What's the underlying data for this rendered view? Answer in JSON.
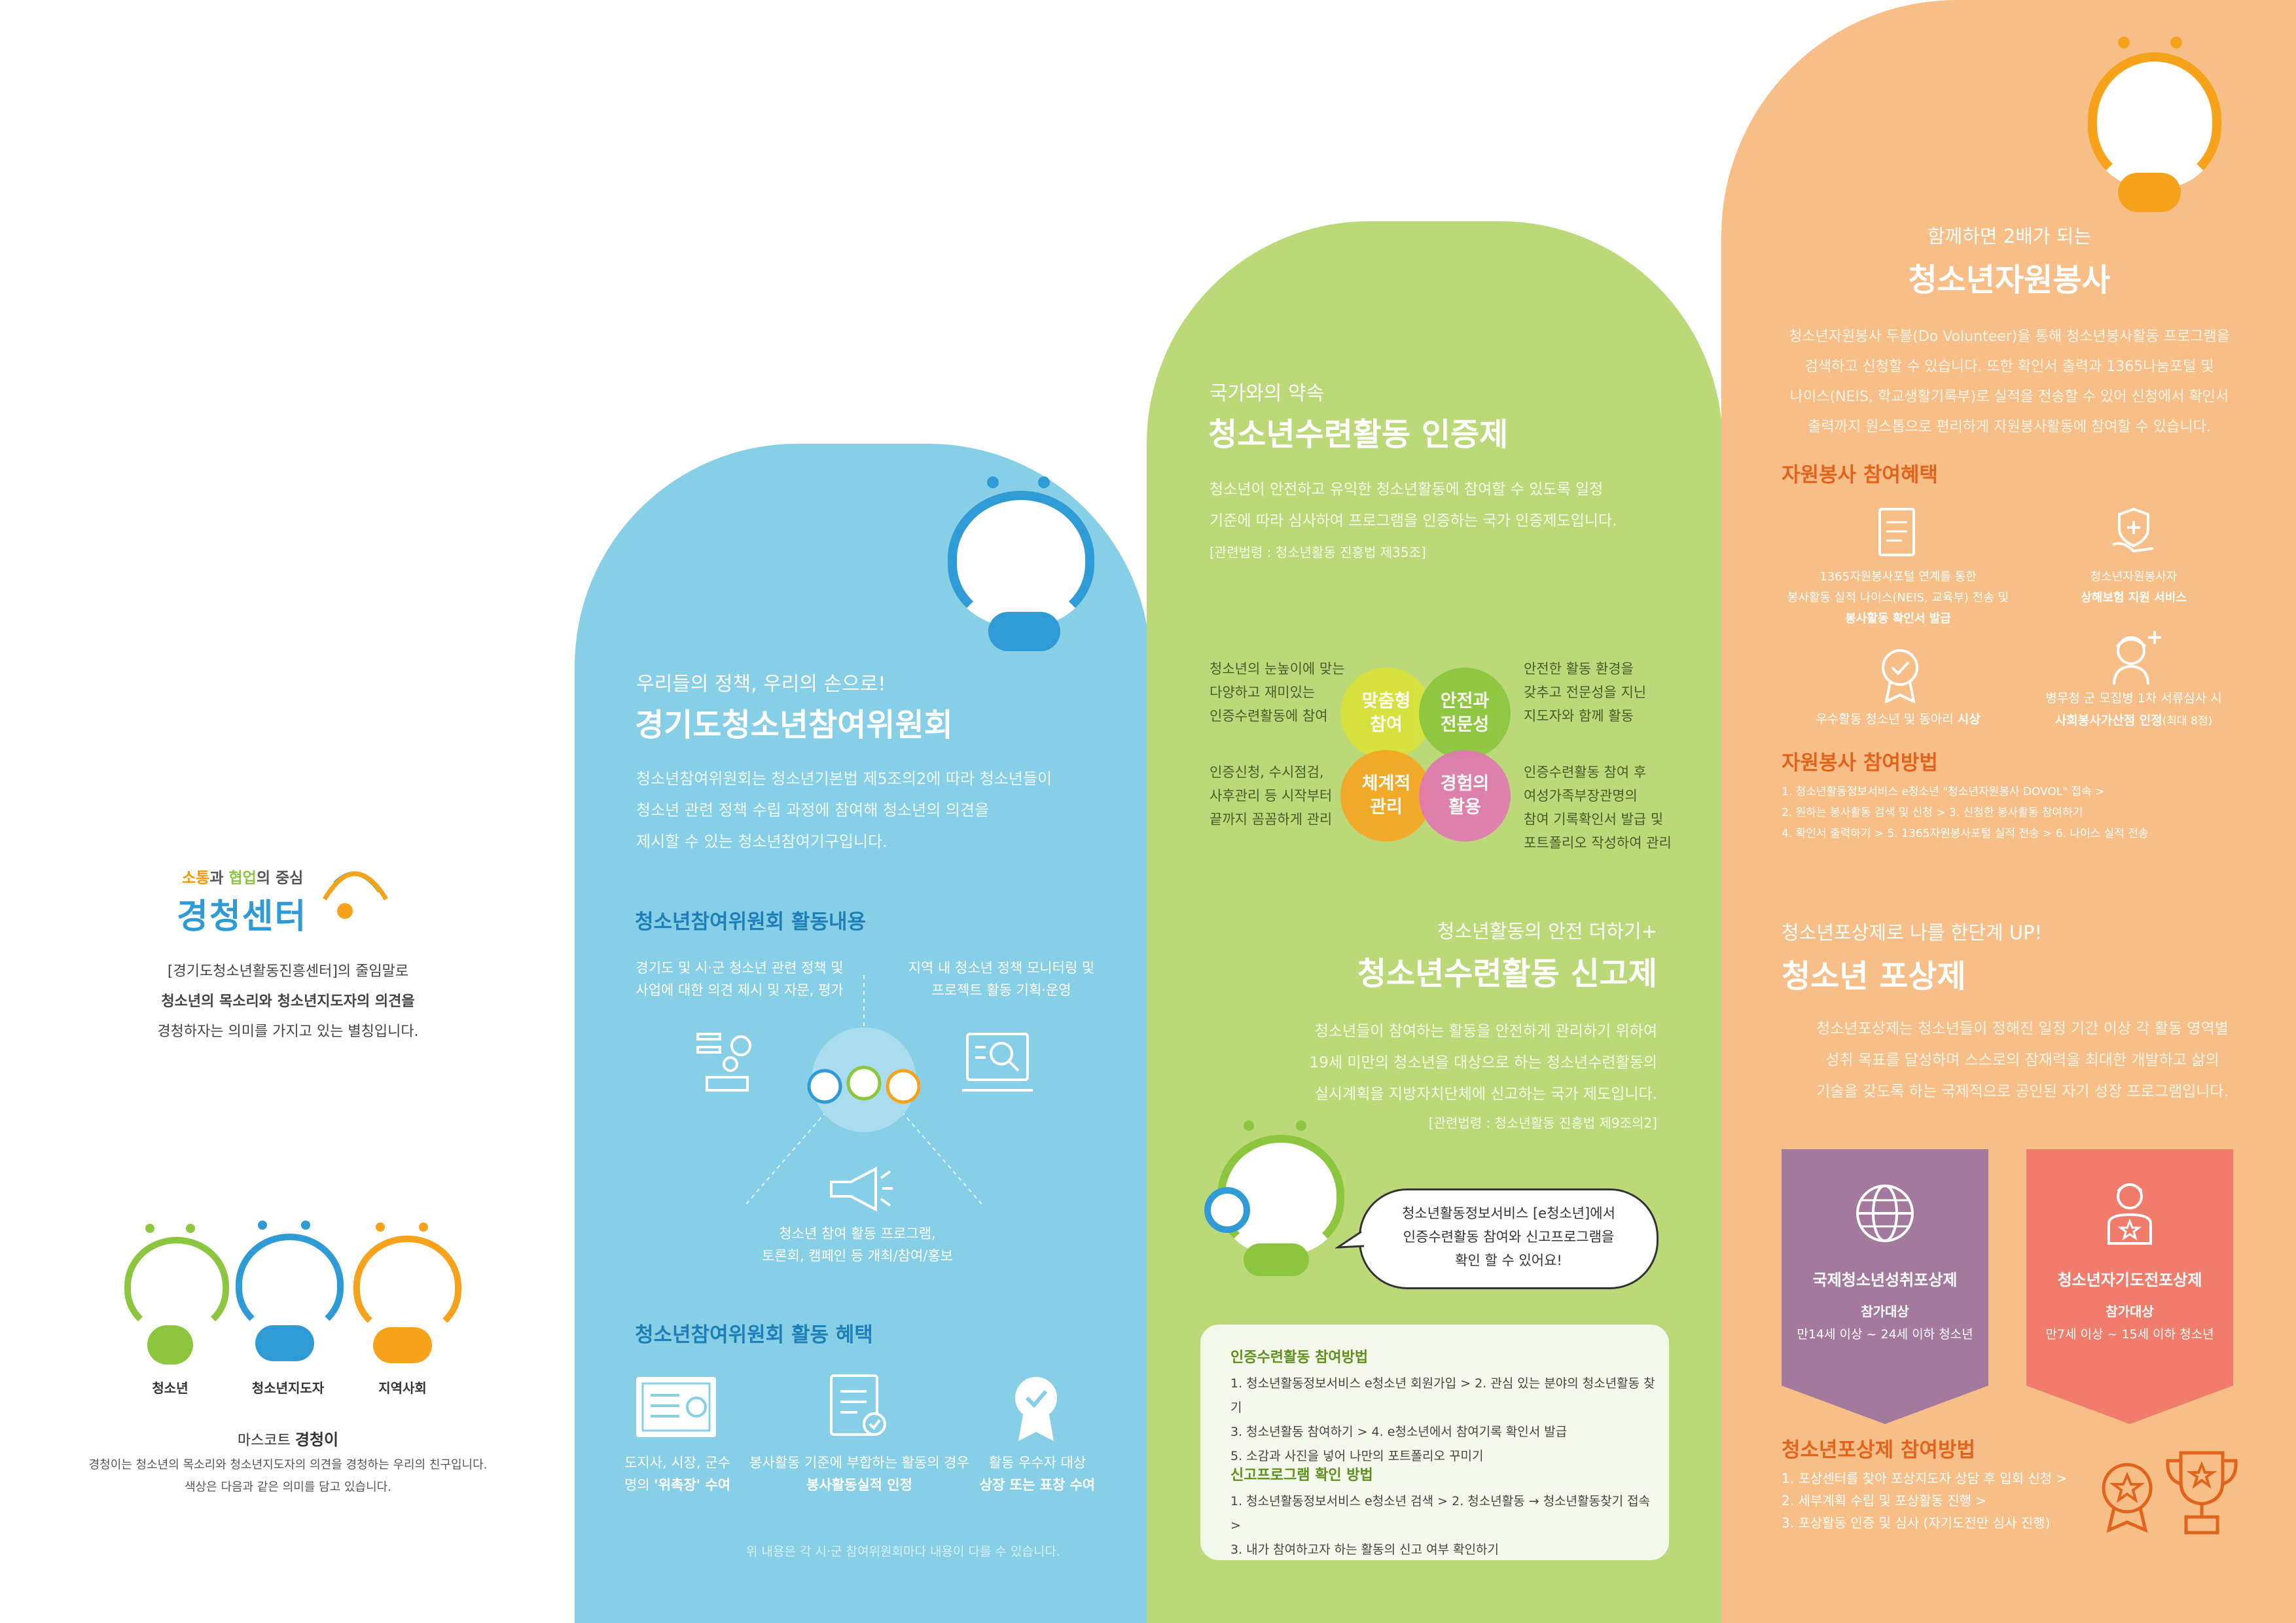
{
  "left": {
    "logo_small": {
      "part1": "소통",
      "part2": "과 ",
      "part3": "협업",
      "part4": "의 중심"
    },
    "logo_big": "경청센터",
    "intro_lines": [
      "[경기도청소년활동진흥센터]의 줄임말로",
      "청소년의 목소리와 청소년지도자의 의견을",
      "경청하자는 의미를 가지고 있는 별칭입니다."
    ],
    "mascots": [
      "청소년",
      "청소년지도자",
      "지역사회"
    ],
    "mascot_title_prefix": "마스코트 ",
    "mascot_title_name": "경청이",
    "mascot_desc": [
      "경청이는 청소년의 목소리와 청소년지도자의 의견을 경청하는 우리의 친구입니다.",
      "색상은 다음과 같은 의미를 담고 있습니다."
    ],
    "colors": {
      "green": "#8cc63f",
      "blue": "#2e9bd6",
      "orange": "#f7a21b"
    }
  },
  "blue": {
    "subtitle": "우리들의 정책, 우리의 손으로!",
    "title": "경기도청소년참여위원회",
    "body": [
      "청소년참여위원회는 청소년기본법 제5조의2에 따라 청소년들이",
      "청소년 관련 정책 수립 과정에 참여해 청소년의 의견을",
      "제시할 수 있는 청소년참여기구입니다."
    ],
    "activities_title": "청소년참여위원회 활동내용",
    "act1": [
      "경기도 및 시·군 청소년 관련 정책 및",
      "사업에 대한 의견 제시 및 자문, 평가"
    ],
    "act2": [
      "지역 내 청소년 정책 모니터링 및",
      "프로젝트 활동 기획·운영"
    ],
    "act3": [
      "청소년 참여 활동 프로그램,",
      "토론회, 캠페인 등 개최/참여/홍보"
    ],
    "benefits_title": "청소년참여위원회 활동 혜택",
    "benefit1": {
      "l1": "도지사, 시장, 군수",
      "l2a": "명의 ",
      "l2b": "'위촉장' 수여"
    },
    "benefit2": {
      "l1": "봉사활동 기준에 부합하는 활동의 경우",
      "l2": "봉사활동실적 인정"
    },
    "benefit3": {
      "l1": "활동 우수자 대상",
      "l2": "상장 또는 표창 수여"
    },
    "note": "위 내용은 각 시·군 참여위원회마다 내용이 다를 수 있습니다."
  },
  "green": {
    "subtitle": "국가와의 약속",
    "title": "청소년수련활동 인증제",
    "body": [
      "청소년이 안전하고 유익한 청소년활동에 참여할 수 있도록 일정",
      "기준에 따라 심사하여 프로그램을 인증하는 국가 인증제도입니다."
    ],
    "law": "[관련법령 : 청소년활동 진흥법 제35조]",
    "venn": {
      "c1": "맞춤형\n참여",
      "c2": "안전과\n전문성",
      "c3": "체계적\n관리",
      "c4": "경험의\n활용",
      "t1": [
        "청소년의 눈높이에 맞는",
        "다양하고 재미있는",
        "인증수련활동에 참여"
      ],
      "t2": [
        "안전한 활동 환경을",
        "갖추고 전문성을 지닌",
        "지도자와 함께 활동"
      ],
      "t3": [
        "인증신청, 수시점검,",
        "사후관리 등 시작부터",
        "끝까지 꼼꼼하게 관리"
      ],
      "t4": [
        "인증수련활동 참여 후",
        "여성가족부장관명의",
        "참여 기록확인서 발급 및",
        "포트폴리오 작성하여 관리"
      ]
    },
    "report_subtitle": "청소년활동의 안전 더하기+",
    "report_title": "청소년수련활동 신고제",
    "report_body": [
      "청소년들이 참여하는 활동을 안전하게 관리하기 위하여",
      "19세 미만의 청소년을 대상으로 하는 청소년수련활동의",
      "실시계획을 지방자치단체에 신고하는 국가 제도입니다."
    ],
    "report_law": "[관련법령 : 청소년활동 진흥법 제9조의2]",
    "bubble": [
      "청소년활동정보서비스 [e청소년]에서",
      "인증수련활동 참여와 신고프로그램을",
      "확인 할 수 있어요!"
    ],
    "box_title1": "인증수련활동 참여방법",
    "box_steps1": [
      "1. 청소년활동정보서비스 e청소년 회원가입 > 2. 관심 있는 분야의 청소년활동 찾기",
      "3. 청소년활동 참여하기 > 4. e청소년에서 참여기록 확인서 발급",
      "5. 소감과 사진을 넣어 나만의 포트폴리오 꾸미기"
    ],
    "box_title2": "신고프로그램 확인 방법",
    "box_steps2": [
      "1. 청소년활동정보서비스 e청소년 검색 > 2. 청소년활동 → 청소년활동찾기 접속 >",
      "3. 내가 참여하고자 하는 활동의 신고 여부 확인하기"
    ]
  },
  "orange": {
    "subtitle": "함께하면 2배가 되는",
    "title": "청소년자원봉사",
    "body": [
      "청소년자원봉사 두볼(Do Volunteer)을 통해 청소년봉사활동 프로그램을",
      "검색하고 신청할 수 있습니다. 또한 확인서 출력과 1365나눔포털 및",
      "나이스(NEIS, 학교생활기록부)로 실적을 전송할 수 있어 신청에서 확인서",
      "출력까지 원스톱으로 편리하게 자원봉사활동에 참여할 수 있습니다."
    ],
    "benefits_title": "자원봉사 참여혜택",
    "b1": [
      "1365자원봉사포털 연계를 통한",
      "봉사활동 실적 나이스(NEIS, 교육부) 전송 및",
      "봉사활동 확인서 발급"
    ],
    "b2": [
      "청소년자원봉사자",
      "상해보험 지원 서비스"
    ],
    "b3a": "우수활동 청소년 및 동아리 ",
    "b3b": "시상",
    "b4": [
      "병무청 군 모집병 1차 서류심사 시",
      "사회봉사가산점 인정",
      "(최대 8점)"
    ],
    "method_title": "자원봉사 참여방법",
    "method_steps": [
      "1. 청소년활동정보서비스 e청소년 \"청소년자원봉사 DOVOL\" 접속 >",
      "2. 원하는 봉사활동 검색 및 신청 > 3. 신청한 봉사활동 참여하기",
      "4. 확인서 출력하기 > 5. 1365자원봉사포털 실적 전송 > 6. 나이스 실적 전송"
    ],
    "award_subtitle": "청소년포상제로 나를 한단계 UP!",
    "award_title": "청소년 포상제",
    "award_body": [
      "청소년포상제는 청소년들이 정해진 일정 기간 이상 각 활동 영역별",
      "성취 목표를 달성하며 스스로의 잠재력을 최대한 개발하고 삶의",
      "기술을 갖도록 하는 국제적으로 공인된 자기 성장 프로그램입니다."
    ],
    "award1": {
      "title": "국제청소년성취포상제",
      "target_label": "참가대상",
      "target": "만14세 이상 ~ 24세 이하 청소년"
    },
    "award2": {
      "title": "청소년자기도전포상제",
      "target_label": "참가대상",
      "target": "만7세 이상 ~ 15세 이하 청소년"
    },
    "award_method_title": "청소년포상제 참여방법",
    "award_steps": [
      "1. 포상센터를 찾아 포상지도자 상담 후 입회 신청 >",
      "2. 세부계획 수립 및 포상활동 진행 >",
      "3. 포상활동 인증 및 심사 (자기도전만 심사 진행)"
    ]
  }
}
